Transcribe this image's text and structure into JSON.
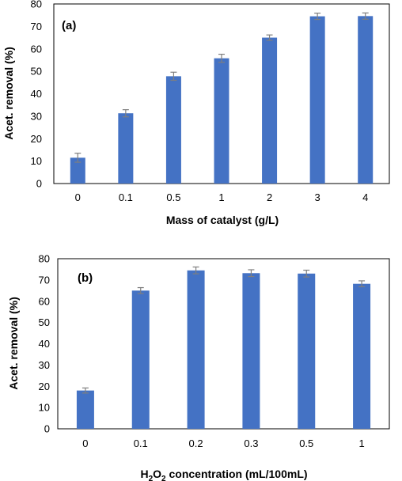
{
  "chart_data": [
    {
      "type": "bar",
      "panel_label": "(a)",
      "categories": [
        "0",
        "0.1",
        "0.5",
        "1",
        "2",
        "3",
        "4"
      ],
      "values": [
        11.5,
        31.3,
        47.8,
        55.8,
        65.0,
        74.5,
        74.6
      ],
      "errors": [
        2.0,
        1.6,
        1.8,
        1.8,
        1.2,
        1.4,
        1.4
      ],
      "xlabel": "Mass of catalyst (g/L)",
      "ylabel": "Acet. removal (%)",
      "ylim": [
        0,
        80
      ],
      "yticks": [
        0,
        10,
        20,
        30,
        40,
        50,
        60,
        70,
        80
      ],
      "bar_color": "#4472c4",
      "error_color": "#7f7f7f",
      "grid": false
    },
    {
      "type": "bar",
      "panel_label": "(b)",
      "categories": [
        "0",
        "0.1",
        "0.2",
        "0.3",
        "0.5",
        "1"
      ],
      "values": [
        18.0,
        65.0,
        74.5,
        73.2,
        73.0,
        68.2
      ],
      "errors": [
        1.2,
        1.4,
        1.6,
        1.6,
        1.6,
        1.4
      ],
      "xlabel": "H2O2 concentration (mL/100mL)",
      "xlabel_parts": {
        "h": "H",
        "sub1": "2",
        "o": "O",
        "sub2": "2",
        "rest": " concentration (mL/100mL)"
      },
      "ylabel": "Acet. removal (%)",
      "ylim": [
        0,
        80
      ],
      "yticks": [
        0,
        10,
        20,
        30,
        40,
        50,
        60,
        70,
        80
      ],
      "bar_color": "#4472c4",
      "error_color": "#7f7f7f",
      "grid": false
    }
  ]
}
